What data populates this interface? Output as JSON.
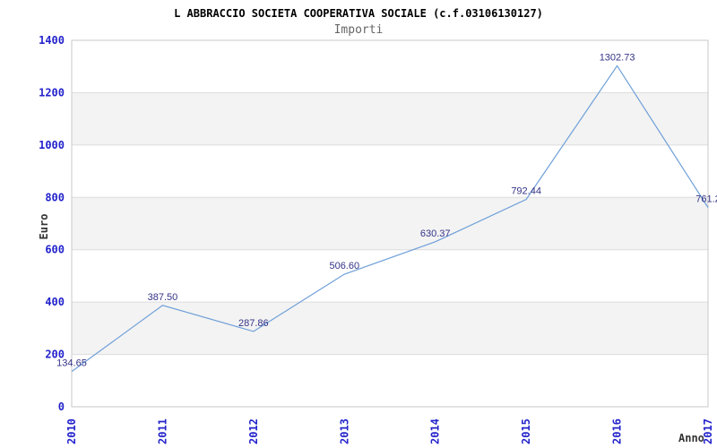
{
  "chart_data": {
    "type": "line",
    "title": "L ABBRACCIO SOCIETA COOPERATIVA SOCIALE (c.f.03106130127)",
    "subtitle": "Importi",
    "xlabel": "Anno",
    "ylabel": "Euro",
    "categories": [
      "2010",
      "2011",
      "2012",
      "2013",
      "2014",
      "2015",
      "2016",
      "2017"
    ],
    "series": [
      {
        "name": "Importi",
        "values": [
          134.65,
          387.5,
          287.86,
          506.6,
          630.37,
          792.44,
          1302.73,
          761.2
        ]
      }
    ],
    "point_labels": [
      "134.65",
      "387.50",
      "287.86",
      "506.60",
      "630.37",
      "792.44",
      "1302.73",
      "761.2"
    ],
    "ylim": [
      0,
      1400
    ],
    "ytick_step": 200,
    "yticks": [
      0,
      200,
      400,
      600,
      800,
      1000,
      1200,
      1400
    ],
    "legend": "none",
    "grid": "horizontal-alternating-bands",
    "colors": {
      "line": "#6e9fd8",
      "axis_tick_label": "#2323cc",
      "point_label": "#333388",
      "band_fill": "#f3f3f3",
      "grid_line": "#dcdcdc",
      "plot_border": "#c9c9c9",
      "title": "#000000",
      "subtitle": "#666666",
      "axis_title": "#333333"
    }
  }
}
